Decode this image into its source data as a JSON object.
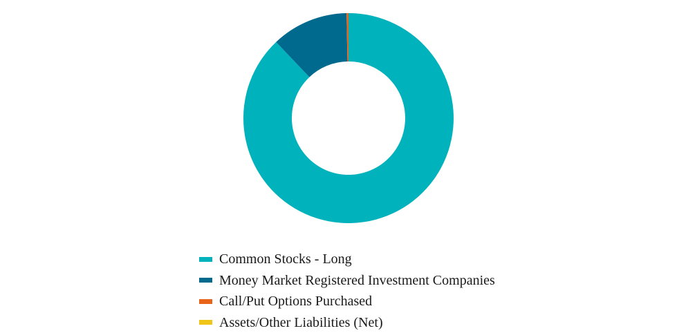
{
  "chart_data": {
    "type": "pie",
    "variant": "donut",
    "title": "",
    "slices": [
      {
        "label": "Common Stocks - Long",
        "value": 87.9,
        "color": "#00b2bb"
      },
      {
        "label": "Money Market Registered Investment Companies",
        "value": 11.8,
        "color": "#006a8e"
      },
      {
        "label": "Call/Put Options Purchased",
        "value": 0.3,
        "color": "#e8641b"
      },
      {
        "label": "Assets/Other Liabilities (Net)",
        "value": 0.0,
        "color": "#f0c419"
      }
    ],
    "legend_position": "bottom"
  }
}
